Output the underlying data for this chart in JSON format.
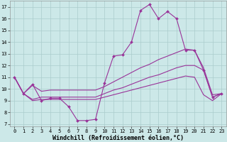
{
  "xlabel": "Windchill (Refroidissement éolien,°C)",
  "bg_color": "#cce8e8",
  "grid_color": "#aacccc",
  "line_color": "#993399",
  "xlim": [
    -0.5,
    23.5
  ],
  "ylim": [
    6.8,
    17.5
  ],
  "xticks": [
    0,
    1,
    2,
    3,
    4,
    5,
    6,
    7,
    8,
    9,
    10,
    11,
    12,
    13,
    14,
    15,
    16,
    17,
    18,
    19,
    20,
    21,
    22,
    23
  ],
  "yticks": [
    7,
    8,
    9,
    10,
    11,
    12,
    13,
    14,
    15,
    16,
    17
  ],
  "line_main_x": [
    0,
    1,
    2,
    3,
    4,
    5,
    6,
    7,
    8,
    9,
    10,
    11,
    12,
    13,
    14,
    15,
    16,
    17,
    18,
    19,
    20,
    21,
    22,
    23
  ],
  "line_main_y": [
    11.0,
    9.6,
    10.4,
    9.0,
    9.2,
    9.2,
    8.5,
    7.3,
    7.3,
    7.4,
    10.5,
    12.8,
    12.9,
    14.0,
    16.7,
    17.2,
    16.0,
    16.6,
    16.0,
    13.3,
    13.3,
    11.6,
    9.3,
    9.6
  ],
  "line2_x": [
    0,
    1,
    2,
    3,
    4,
    5,
    6,
    7,
    8,
    9,
    10,
    11,
    12,
    13,
    14,
    15,
    16,
    17,
    18,
    19,
    20,
    21,
    22,
    23
  ],
  "line2_y": [
    11.0,
    9.6,
    10.3,
    9.8,
    9.9,
    9.9,
    9.9,
    9.9,
    9.9,
    9.9,
    10.2,
    10.6,
    11.0,
    11.4,
    11.8,
    12.1,
    12.5,
    12.8,
    13.1,
    13.4,
    13.3,
    11.8,
    9.5,
    9.6
  ],
  "line3_x": [
    0,
    1,
    2,
    3,
    4,
    5,
    6,
    7,
    8,
    9,
    10,
    11,
    12,
    13,
    14,
    15,
    16,
    17,
    18,
    19,
    20,
    21,
    22,
    23
  ],
  "line3_y": [
    11.0,
    9.6,
    9.1,
    9.3,
    9.3,
    9.3,
    9.3,
    9.3,
    9.3,
    9.3,
    9.6,
    9.9,
    10.1,
    10.4,
    10.7,
    11.0,
    11.2,
    11.5,
    11.8,
    12.0,
    12.0,
    11.6,
    9.3,
    9.6
  ],
  "line4_x": [
    0,
    1,
    2,
    3,
    4,
    5,
    6,
    7,
    8,
    9,
    10,
    11,
    12,
    13,
    14,
    15,
    16,
    17,
    18,
    19,
    20,
    21,
    22,
    23
  ],
  "line4_y": [
    11.0,
    9.6,
    9.0,
    9.1,
    9.1,
    9.1,
    9.1,
    9.1,
    9.1,
    9.1,
    9.3,
    9.5,
    9.7,
    9.9,
    10.1,
    10.3,
    10.5,
    10.7,
    10.9,
    11.1,
    11.0,
    9.5,
    9.0,
    9.6
  ],
  "markersize": 2.0,
  "linewidth": 0.8,
  "tick_fontsize": 5.0,
  "label_fontsize": 6.0
}
